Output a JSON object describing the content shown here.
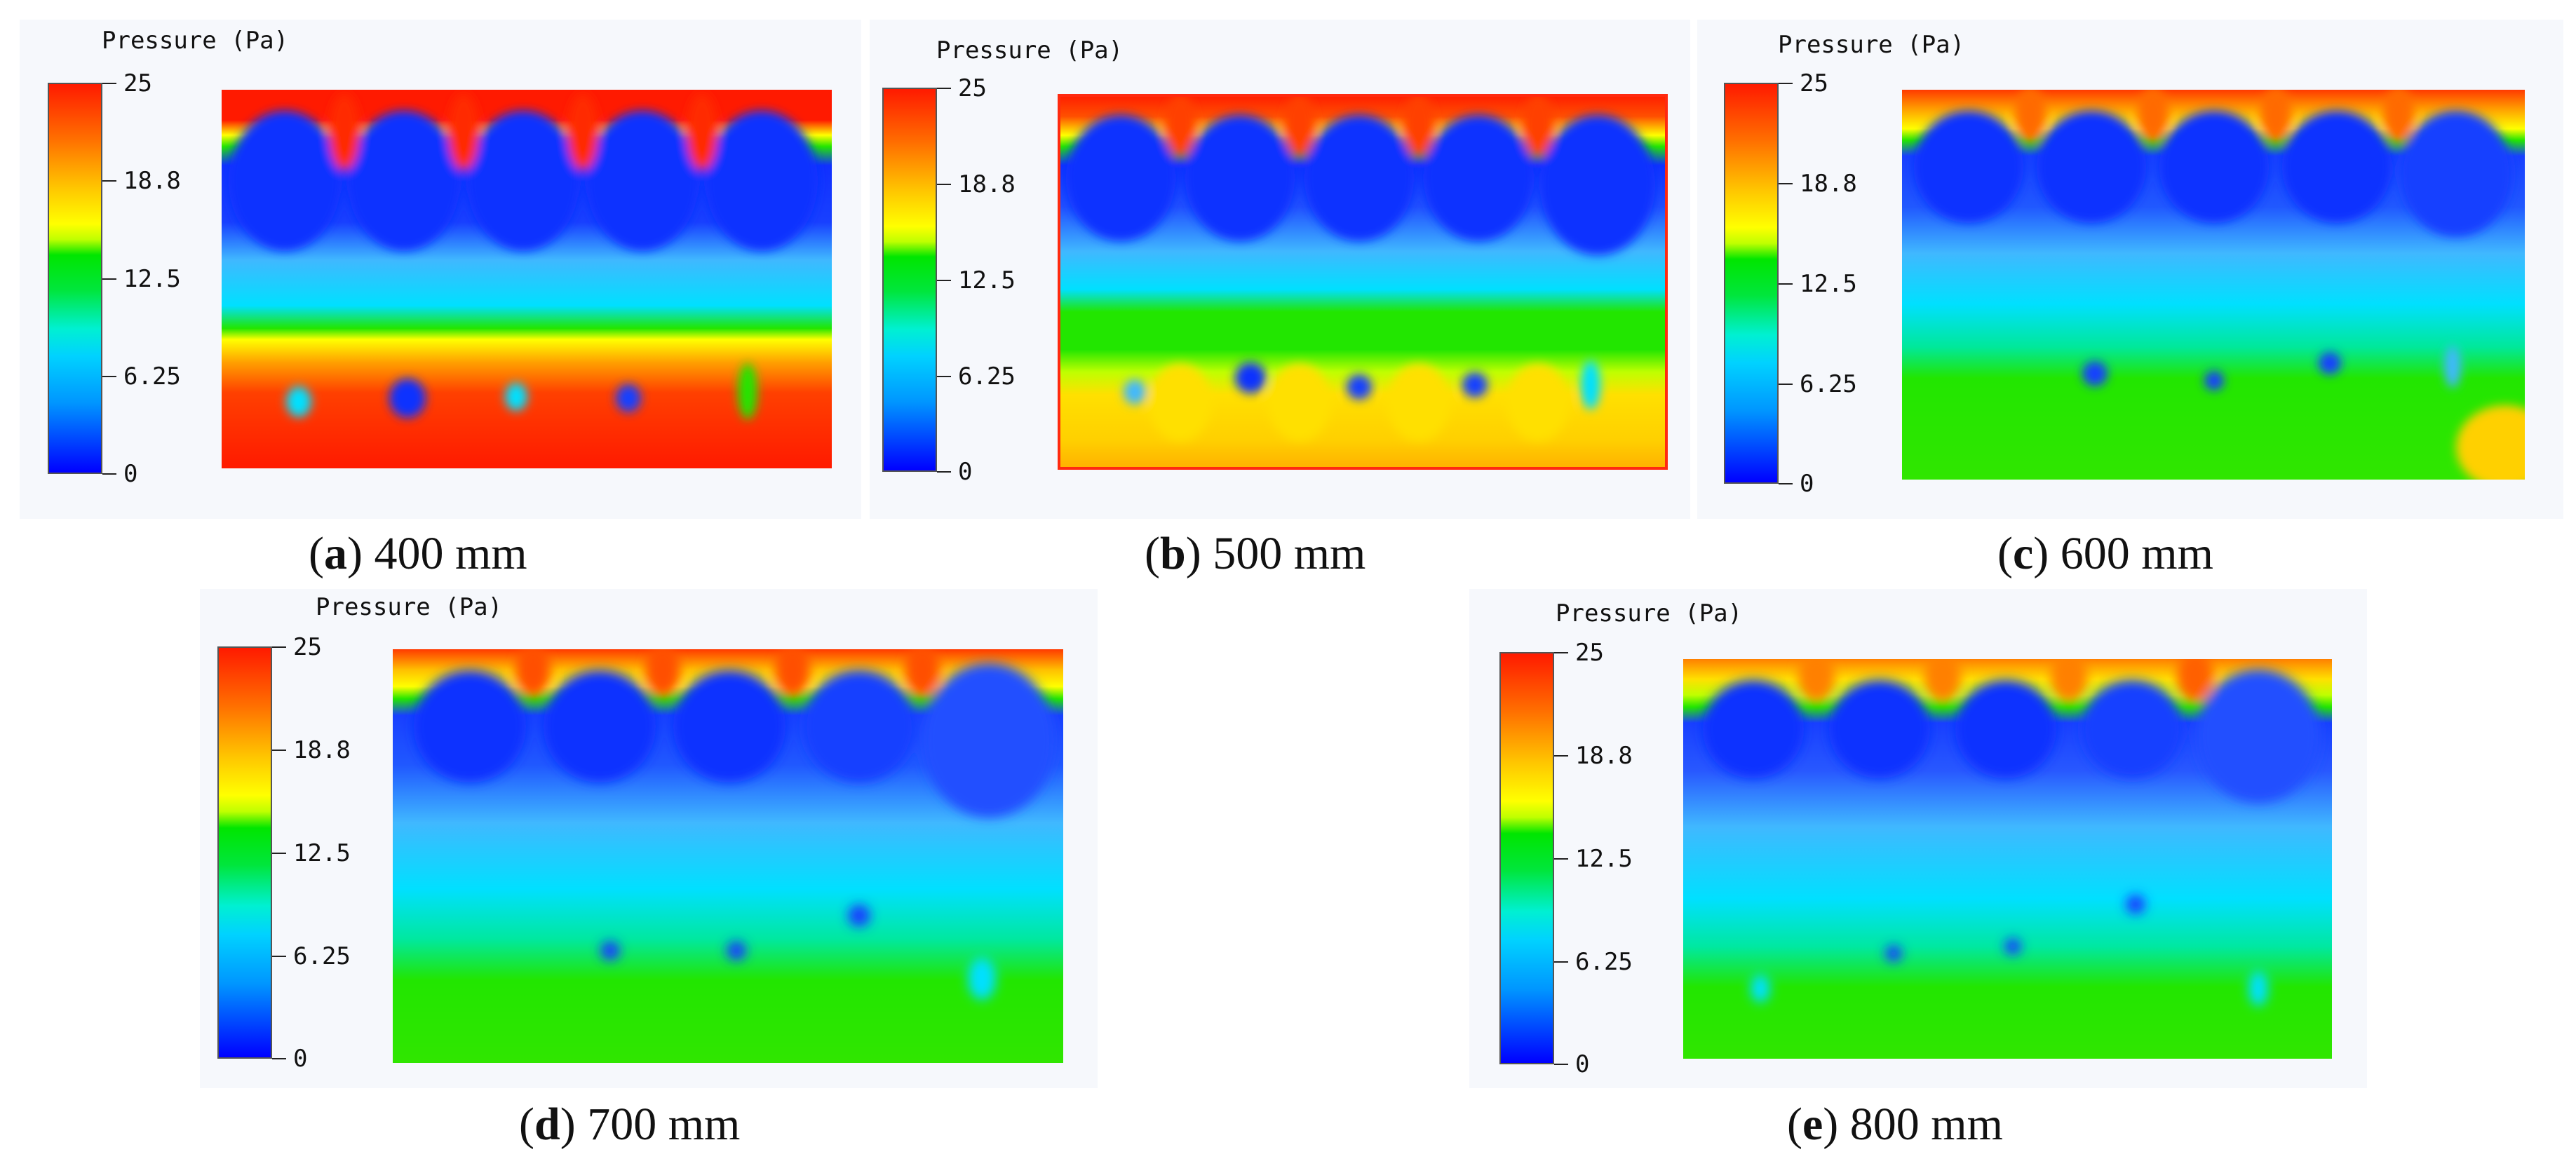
{
  "figure": {
    "legend_title": "Pressure (Pa)",
    "colorbar_ticks": [
      "25",
      "18.8",
      "12.5",
      "6.25",
      "0"
    ],
    "colors": {
      "high": "#ff1a00",
      "orange": "#ff9a00",
      "yellow": "#ffff00",
      "green": "#22e600",
      "cyan": "#00e0ff",
      "light_blue": "#40b8ff",
      "blue": "#1030ff",
      "panel_bg": "#f6f8fc"
    },
    "panels": [
      {
        "letter": "a",
        "label": "400 mm"
      },
      {
        "letter": "b",
        "label": "500 mm"
      },
      {
        "letter": "c",
        "label": "600 mm"
      },
      {
        "letter": "d",
        "label": "700 mm"
      },
      {
        "letter": "e",
        "label": "800 mm"
      }
    ]
  }
}
